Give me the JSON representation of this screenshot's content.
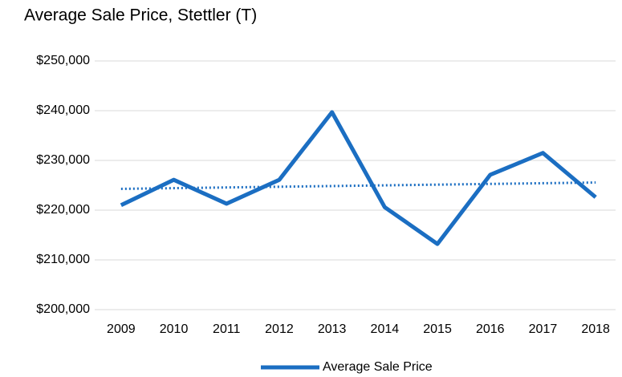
{
  "chart_data": {
    "type": "line",
    "title": "Average Sale Price, Stettler (T)",
    "categories": [
      "2009",
      "2010",
      "2011",
      "2012",
      "2013",
      "2014",
      "2015",
      "2016",
      "2017",
      "2018"
    ],
    "series": [
      {
        "name": "Average Sale Price",
        "color": "#1b6ec2",
        "values": [
          221000,
          226100,
          221300,
          226100,
          239700,
          220600,
          213200,
          227100,
          231500,
          222600
        ]
      }
    ],
    "ylim": [
      200000,
      250000
    ],
    "yticks": [
      {
        "value": 200000,
        "label": "$200,000"
      },
      {
        "value": 210000,
        "label": "$210,000"
      },
      {
        "value": 220000,
        "label": "$220,000"
      },
      {
        "value": 230000,
        "label": "$230,000"
      },
      {
        "value": 240000,
        "label": "$240,000"
      },
      {
        "value": 250000,
        "label": "$250,000"
      }
    ],
    "grid": true,
    "trendline": true,
    "legend": "bottom"
  }
}
